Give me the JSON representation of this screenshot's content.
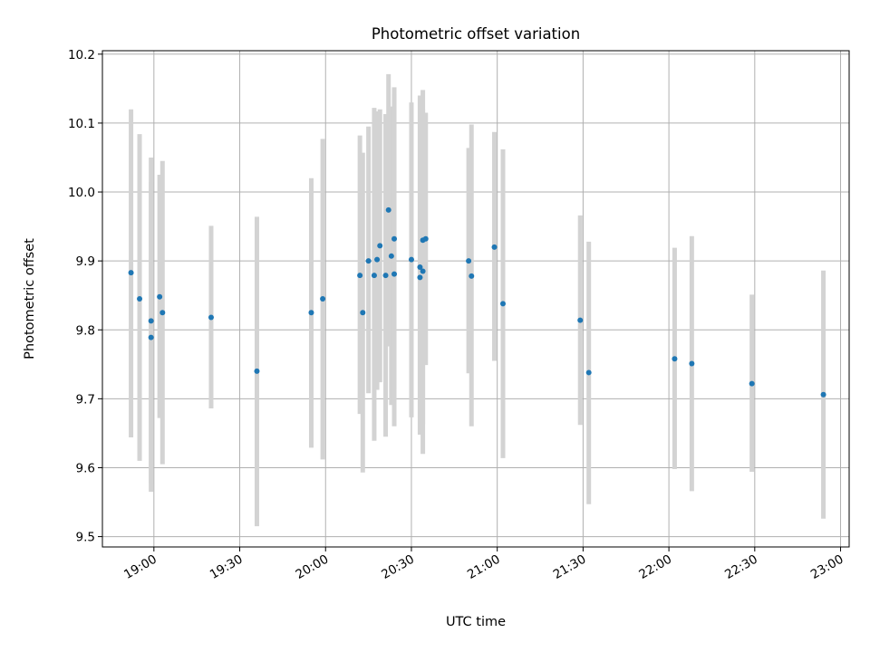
{
  "chart_data": {
    "type": "scatter",
    "title": "Photometric offset variation",
    "xlabel": "UTC time",
    "ylabel": "Photometric offset",
    "xlim": [
      "18:42",
      "23:03"
    ],
    "ylim": [
      9.485,
      10.205
    ],
    "x_ticks": [
      "19:00",
      "19:30",
      "20:00",
      "20:30",
      "21:00",
      "21:30",
      "22:00",
      "22:30",
      "23:00"
    ],
    "y_ticks": [
      "9.5",
      "9.6",
      "9.7",
      "9.8",
      "9.9",
      "10.0",
      "10.1",
      "10.2"
    ],
    "grid": true,
    "marker_color": "#1f77b4",
    "errorbar_color": "#d3d3d3",
    "points": [
      {
        "time": "18:52",
        "y": 9.883,
        "low": 9.644,
        "high": 10.12
      },
      {
        "time": "18:55",
        "y": 9.845,
        "low": 9.61,
        "high": 10.084
      },
      {
        "time": "18:59",
        "y": 9.789,
        "low": 9.565,
        "high": 10.015
      },
      {
        "time": "18:59",
        "y": 9.813,
        "low": 9.577,
        "high": 10.05
      },
      {
        "time": "19:02",
        "y": 9.848,
        "low": 9.672,
        "high": 10.025
      },
      {
        "time": "19:03",
        "y": 9.825,
        "low": 9.605,
        "high": 10.045
      },
      {
        "time": "19:20",
        "y": 9.818,
        "low": 9.686,
        "high": 9.951
      },
      {
        "time": "19:36",
        "y": 9.74,
        "low": 9.515,
        "high": 9.964
      },
      {
        "time": "19:55",
        "y": 9.825,
        "low": 9.629,
        "high": 10.02
      },
      {
        "time": "19:59",
        "y": 9.845,
        "low": 9.612,
        "high": 10.077
      },
      {
        "time": "20:12",
        "y": 9.879,
        "low": 9.678,
        "high": 10.082
      },
      {
        "time": "20:13",
        "y": 9.825,
        "low": 9.593,
        "high": 10.057
      },
      {
        "time": "20:15",
        "y": 9.9,
        "low": 9.708,
        "high": 10.095
      },
      {
        "time": "20:17",
        "y": 9.879,
        "low": 9.639,
        "high": 10.122
      },
      {
        "time": "20:18",
        "y": 9.902,
        "low": 9.713,
        "high": 10.117
      },
      {
        "time": "20:19",
        "y": 9.922,
        "low": 9.724,
        "high": 10.12
      },
      {
        "time": "20:21",
        "y": 9.879,
        "low": 9.645,
        "high": 10.113
      },
      {
        "time": "20:22",
        "y": 9.974,
        "low": 9.776,
        "high": 10.171
      },
      {
        "time": "20:23",
        "y": 9.907,
        "low": 9.691,
        "high": 10.124
      },
      {
        "time": "20:24",
        "y": 9.932,
        "low": 9.713,
        "high": 10.152
      },
      {
        "time": "20:24",
        "y": 9.881,
        "low": 9.66,
        "high": 10.142
      },
      {
        "time": "20:30",
        "y": 9.902,
        "low": 9.673,
        "high": 10.13
      },
      {
        "time": "20:33",
        "y": 9.891,
        "low": 9.673,
        "high": 10.137
      },
      {
        "time": "20:33",
        "y": 9.876,
        "low": 9.648,
        "high": 10.14
      },
      {
        "time": "20:34",
        "y": 9.885,
        "low": 9.62,
        "high": 10.148
      },
      {
        "time": "20:34",
        "y": 9.93,
        "low": 9.663,
        "high": 10.12
      },
      {
        "time": "20:35",
        "y": 9.932,
        "low": 9.749,
        "high": 10.115
      },
      {
        "time": "20:50",
        "y": 9.9,
        "low": 9.737,
        "high": 10.064
      },
      {
        "time": "20:51",
        "y": 9.878,
        "low": 9.66,
        "high": 10.098
      },
      {
        "time": "20:59",
        "y": 9.92,
        "low": 9.755,
        "high": 10.087
      },
      {
        "time": "21:02",
        "y": 9.838,
        "low": 9.614,
        "high": 10.062
      },
      {
        "time": "21:29",
        "y": 9.814,
        "low": 9.662,
        "high": 9.966
      },
      {
        "time": "21:32",
        "y": 9.738,
        "low": 9.547,
        "high": 9.928
      },
      {
        "time": "22:02",
        "y": 9.758,
        "low": 9.598,
        "high": 9.919
      },
      {
        "time": "22:08",
        "y": 9.751,
        "low": 9.566,
        "high": 9.936
      },
      {
        "time": "22:29",
        "y": 9.722,
        "low": 9.594,
        "high": 9.851
      },
      {
        "time": "22:54",
        "y": 9.706,
        "low": 9.526,
        "high": 9.886
      }
    ]
  }
}
